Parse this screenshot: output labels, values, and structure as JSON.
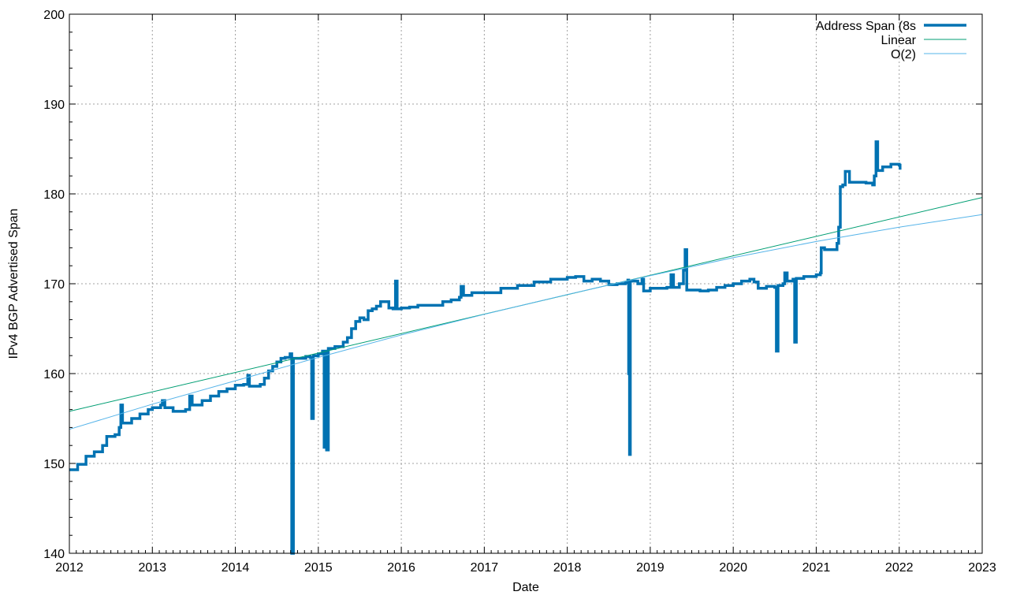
{
  "chart_data": {
    "type": "line",
    "title": "",
    "xlabel": "Date",
    "ylabel": "IPv4 BGP Advertised Span",
    "xlim": [
      2012,
      2023
    ],
    "ylim": [
      140,
      200
    ],
    "x_ticks": [
      "2012",
      "2013",
      "2014",
      "2015",
      "2016",
      "2017",
      "2018",
      "2019",
      "2020",
      "2021",
      "2022",
      "2023"
    ],
    "y_ticks": [
      "140",
      "150",
      "160",
      "170",
      "180",
      "190",
      "200"
    ],
    "grid": true,
    "legend_position": "top-right",
    "series": [
      {
        "name": "Address Span (8s",
        "color": "#0072b2",
        "points": [
          [
            2012.0,
            149.3
          ],
          [
            2012.1,
            149.9
          ],
          [
            2012.2,
            150.8
          ],
          [
            2012.3,
            151.3
          ],
          [
            2012.4,
            152.0
          ],
          [
            2012.45,
            153.0
          ],
          [
            2012.55,
            153.2
          ],
          [
            2012.6,
            154.0
          ],
          [
            2012.62,
            156.5
          ],
          [
            2012.64,
            154.5
          ],
          [
            2012.75,
            155.0
          ],
          [
            2012.85,
            155.5
          ],
          [
            2012.95,
            156.0
          ],
          [
            2013.0,
            156.2
          ],
          [
            2013.1,
            156.5
          ],
          [
            2013.12,
            157.0
          ],
          [
            2013.15,
            156.2
          ],
          [
            2013.22,
            156.2
          ],
          [
            2013.25,
            155.8
          ],
          [
            2013.4,
            156.0
          ],
          [
            2013.45,
            157.5
          ],
          [
            2013.48,
            156.5
          ],
          [
            2013.6,
            157.0
          ],
          [
            2013.7,
            157.5
          ],
          [
            2013.8,
            158.0
          ],
          [
            2013.9,
            158.3
          ],
          [
            2014.0,
            158.7
          ],
          [
            2014.1,
            158.8
          ],
          [
            2014.15,
            159.8
          ],
          [
            2014.17,
            158.6
          ],
          [
            2014.3,
            158.8
          ],
          [
            2014.35,
            159.5
          ],
          [
            2014.4,
            160.3
          ],
          [
            2014.45,
            160.8
          ],
          [
            2014.5,
            161.3
          ],
          [
            2014.55,
            161.7
          ],
          [
            2014.6,
            161.8
          ],
          [
            2014.66,
            162.2
          ],
          [
            2014.68,
            140.0
          ],
          [
            2014.7,
            161.7
          ],
          [
            2014.85,
            161.9
          ],
          [
            2014.9,
            161.8
          ],
          [
            2014.92,
            155.0
          ],
          [
            2014.94,
            162.0
          ],
          [
            2015.0,
            162.2
          ],
          [
            2015.05,
            162.5
          ],
          [
            2015.07,
            151.8
          ],
          [
            2015.09,
            162.5
          ],
          [
            2015.1,
            151.5
          ],
          [
            2015.12,
            162.8
          ],
          [
            2015.2,
            163.0
          ],
          [
            2015.3,
            163.5
          ],
          [
            2015.35,
            164.0
          ],
          [
            2015.4,
            165.0
          ],
          [
            2015.45,
            165.8
          ],
          [
            2015.5,
            166.2
          ],
          [
            2015.55,
            166.0
          ],
          [
            2015.6,
            167.0
          ],
          [
            2015.65,
            167.2
          ],
          [
            2015.7,
            167.5
          ],
          [
            2015.75,
            168.0
          ],
          [
            2015.8,
            168.0
          ],
          [
            2015.85,
            167.3
          ],
          [
            2015.9,
            167.2
          ],
          [
            2015.93,
            170.3
          ],
          [
            2015.95,
            167.2
          ],
          [
            2016.0,
            167.3
          ],
          [
            2016.1,
            167.4
          ],
          [
            2016.2,
            167.6
          ],
          [
            2016.4,
            167.6
          ],
          [
            2016.5,
            168.0
          ],
          [
            2016.6,
            168.2
          ],
          [
            2016.7,
            168.5
          ],
          [
            2016.72,
            169.7
          ],
          [
            2016.75,
            168.7
          ],
          [
            2016.85,
            169.0
          ],
          [
            2017.0,
            169.0
          ],
          [
            2017.1,
            169.0
          ],
          [
            2017.2,
            169.5
          ],
          [
            2017.4,
            169.8
          ],
          [
            2017.6,
            170.2
          ],
          [
            2017.8,
            170.5
          ],
          [
            2018.0,
            170.7
          ],
          [
            2018.1,
            170.8
          ],
          [
            2018.2,
            170.3
          ],
          [
            2018.3,
            170.5
          ],
          [
            2018.4,
            170.3
          ],
          [
            2018.5,
            169.9
          ],
          [
            2018.6,
            170.0
          ],
          [
            2018.7,
            170.1
          ],
          [
            2018.73,
            170.4
          ],
          [
            2018.74,
            160.0
          ],
          [
            2018.75,
            151.0
          ],
          [
            2018.76,
            170.3
          ],
          [
            2018.85,
            170.0
          ],
          [
            2018.9,
            170.5
          ],
          [
            2018.92,
            169.2
          ],
          [
            2019.0,
            169.5
          ],
          [
            2019.2,
            169.6
          ],
          [
            2019.25,
            171.0
          ],
          [
            2019.28,
            169.6
          ],
          [
            2019.35,
            170.0
          ],
          [
            2019.4,
            171.5
          ],
          [
            2019.42,
            173.8
          ],
          [
            2019.44,
            169.3
          ],
          [
            2019.6,
            169.2
          ],
          [
            2019.7,
            169.3
          ],
          [
            2019.8,
            169.6
          ],
          [
            2019.9,
            169.8
          ],
          [
            2020.0,
            170.0
          ],
          [
            2020.1,
            170.3
          ],
          [
            2020.2,
            170.5
          ],
          [
            2020.25,
            170.2
          ],
          [
            2020.3,
            169.5
          ],
          [
            2020.4,
            169.7
          ],
          [
            2020.5,
            169.6
          ],
          [
            2020.52,
            162.5
          ],
          [
            2020.54,
            169.8
          ],
          [
            2020.6,
            170.0
          ],
          [
            2020.62,
            171.2
          ],
          [
            2020.65,
            170.3
          ],
          [
            2020.72,
            170.5
          ],
          [
            2020.74,
            163.5
          ],
          [
            2020.76,
            170.6
          ],
          [
            2020.85,
            170.8
          ],
          [
            2021.0,
            171.0
          ],
          [
            2021.05,
            171.2
          ],
          [
            2021.06,
            174.0
          ],
          [
            2021.1,
            173.8
          ],
          [
            2021.2,
            173.8
          ],
          [
            2021.25,
            174.5
          ],
          [
            2021.27,
            176.3
          ],
          [
            2021.29,
            180.8
          ],
          [
            2021.32,
            181.0
          ],
          [
            2021.35,
            182.5
          ],
          [
            2021.4,
            181.3
          ],
          [
            2021.5,
            181.3
          ],
          [
            2021.6,
            181.2
          ],
          [
            2021.68,
            181.0
          ],
          [
            2021.7,
            182.0
          ],
          [
            2021.72,
            185.8
          ],
          [
            2021.74,
            182.6
          ],
          [
            2021.8,
            183.0
          ],
          [
            2021.9,
            183.3
          ],
          [
            2022.0,
            183.2
          ],
          [
            2022.01,
            182.7
          ]
        ]
      },
      {
        "name": "Linear",
        "color": "#009e73",
        "points": [
          [
            2012.0,
            155.8
          ],
          [
            2023.0,
            179.6
          ]
        ]
      },
      {
        "name": "O(2)",
        "color": "#56b4e9",
        "points": [
          [
            2012.0,
            153.8
          ],
          [
            2013.0,
            156.6
          ],
          [
            2014.0,
            159.2
          ],
          [
            2015.0,
            161.8
          ],
          [
            2016.0,
            164.3
          ],
          [
            2017.0,
            166.6
          ],
          [
            2018.0,
            168.8
          ],
          [
            2019.0,
            170.9
          ],
          [
            2020.0,
            172.9
          ],
          [
            2021.0,
            174.7
          ],
          [
            2022.0,
            176.3
          ],
          [
            2023.0,
            177.7
          ]
        ]
      }
    ]
  }
}
